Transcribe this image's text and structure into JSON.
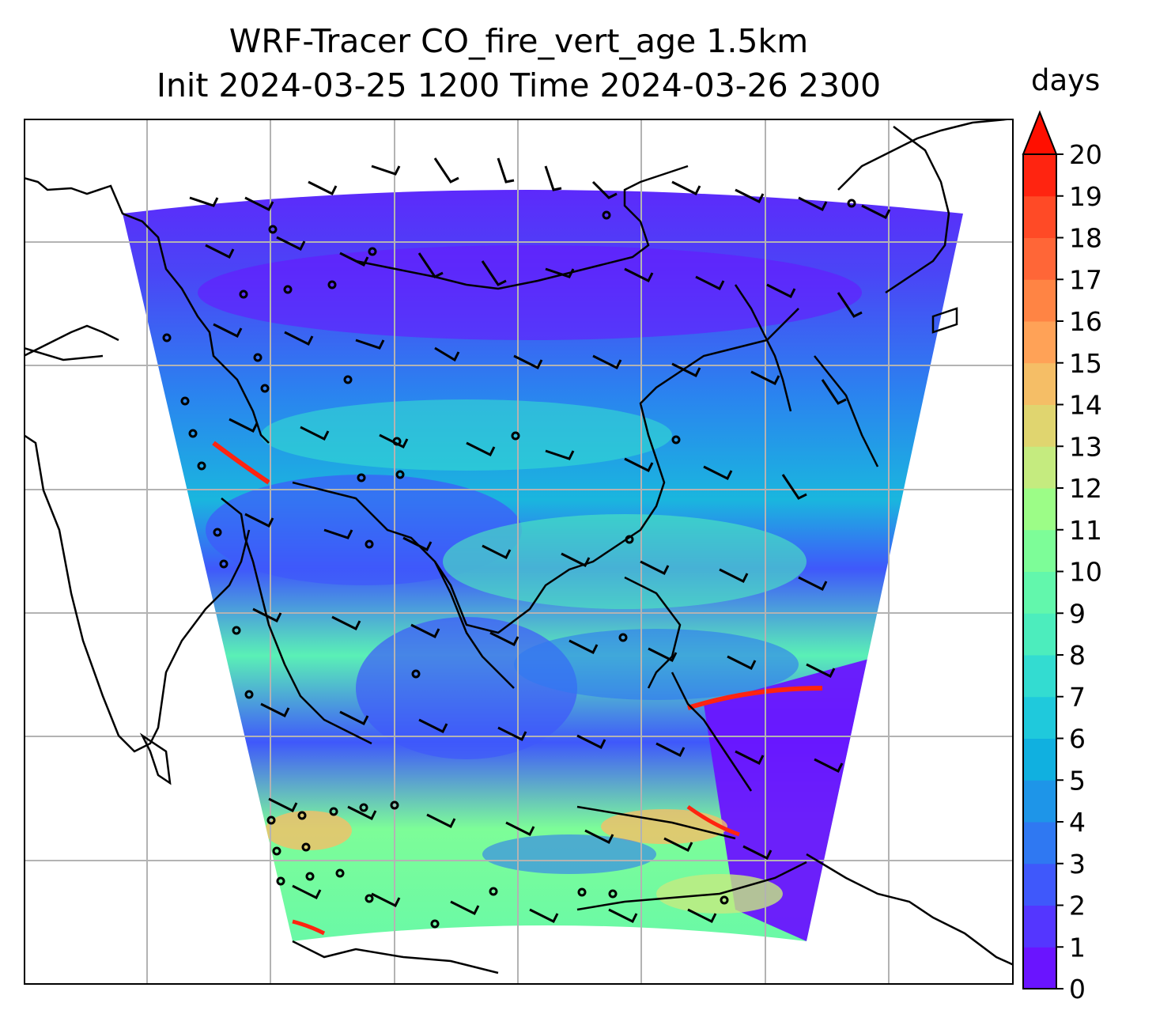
{
  "title": {
    "line1": "WRF-Tracer CO_fire_vert_age 1.5km",
    "line2": "Init 2024-03-25 1200 Time 2024-03-26 2300"
  },
  "colorbar": {
    "label": "days",
    "ticks": [
      "0",
      "1",
      "2",
      "3",
      "4",
      "5",
      "6",
      "7",
      "8",
      "9",
      "10",
      "11",
      "12",
      "13",
      "14",
      "15",
      "16",
      "17",
      "18",
      "19",
      "20"
    ],
    "extend": "max",
    "colors": [
      "#6a14ff",
      "#5436ff",
      "#3f58fb",
      "#2f78f2",
      "#1e95e8",
      "#10b0e0",
      "#1fc9dc",
      "#33dcd1",
      "#4cedbd",
      "#62f7ac",
      "#7dfd98",
      "#9cfd87",
      "#c5eb7f",
      "#e0d56f",
      "#f5be66",
      "#ffa257",
      "#ff8444",
      "#ff6637",
      "#ff4a26",
      "#ff2410"
    ],
    "over_color": "#ff0f00"
  },
  "map": {
    "gridlines": "on",
    "gridline_color": "#b3b3b3",
    "coastline_color": "#000000",
    "vectors": "wind barbs",
    "field_colors": {
      "north": "#4a46f6",
      "north_dark": "#6c12ff",
      "mid": "#1a9ee6",
      "south": "#6bf3b0",
      "south_warm": "#9efb8c",
      "hot": "#ff3a20"
    }
  }
}
